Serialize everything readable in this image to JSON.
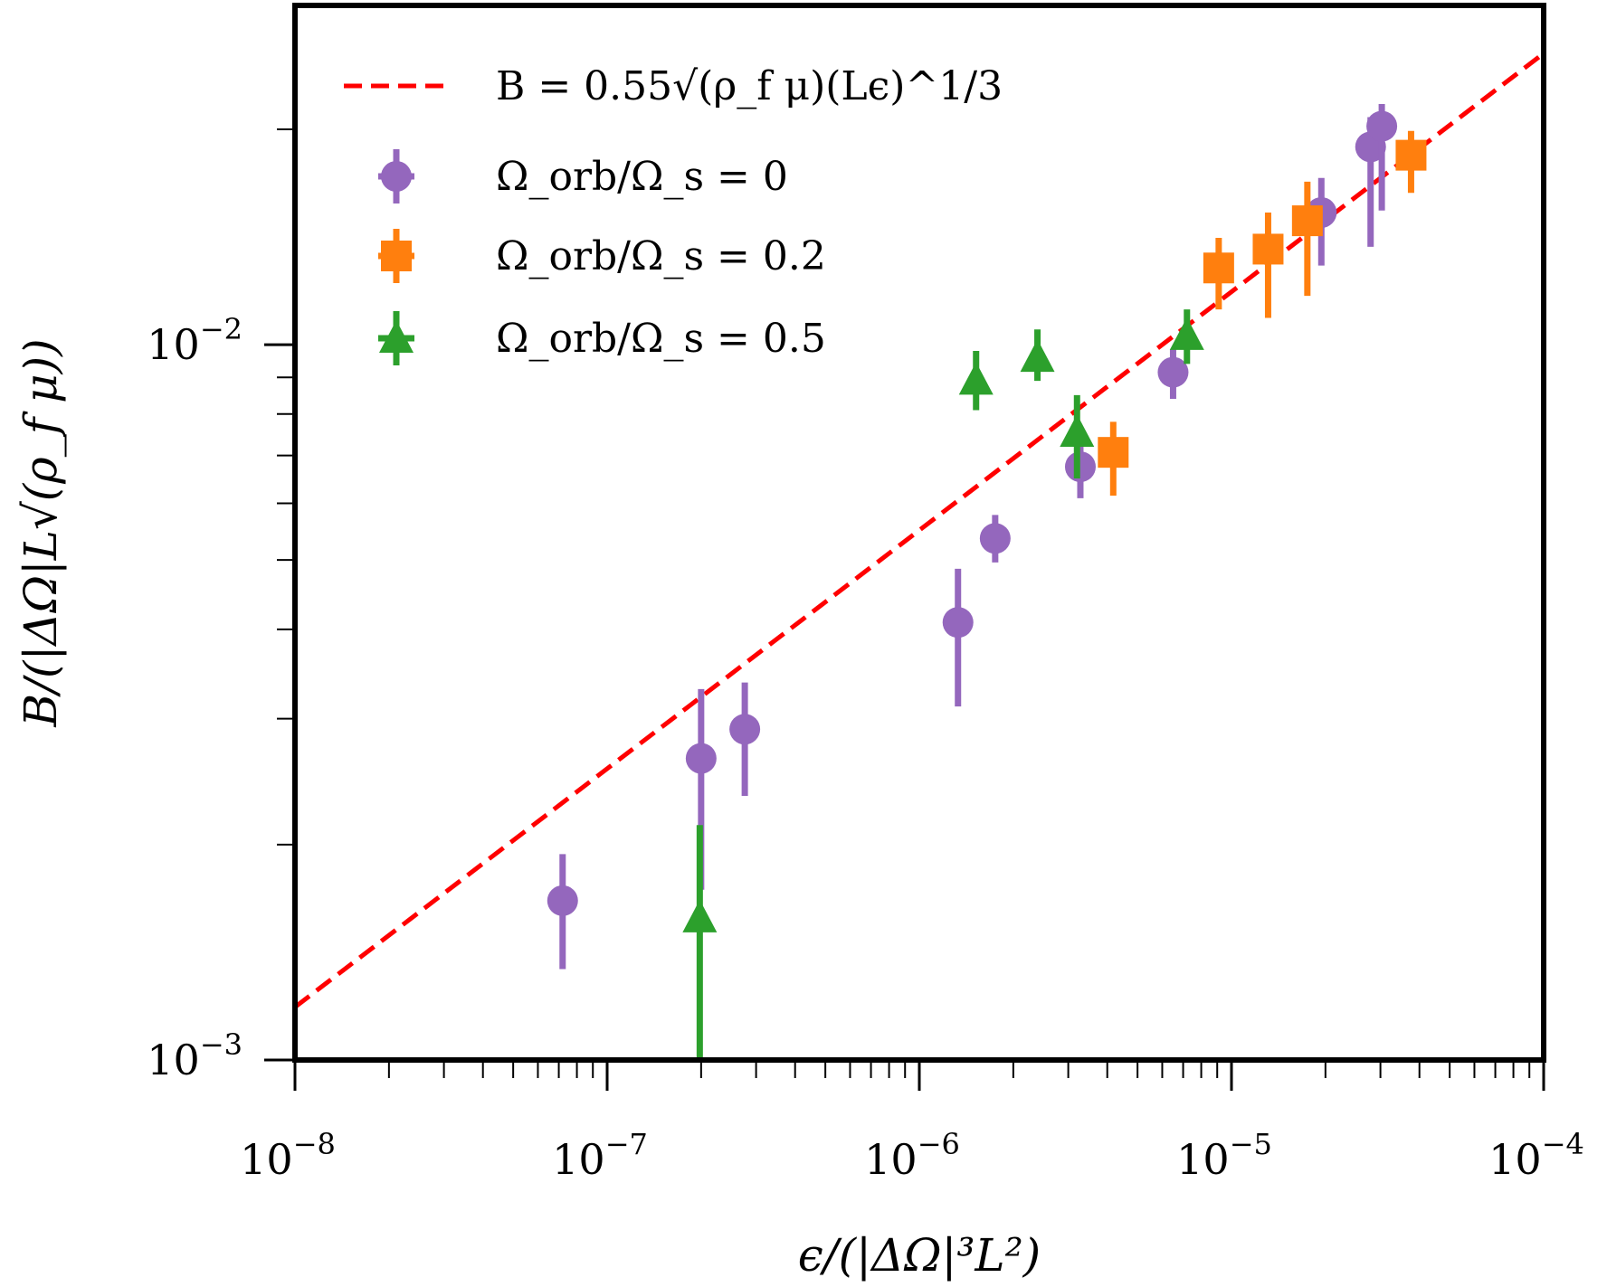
{
  "chart_data": {
    "type": "scatter",
    "title": "",
    "xlabel": "ϵ/(|ΔΩ|³L²)",
    "ylabel": "B/(|ΔΩ|L√(ρ_f μ))",
    "xscale": "log",
    "yscale": "log",
    "xlim": [
      1e-08,
      0.0001
    ],
    "ylim": [
      0.001,
      0.0298
    ],
    "grid": false,
    "legend_position": "top-left",
    "x_ticks": [
      {
        "value": 1e-08,
        "base": "10",
        "exp": "−8"
      },
      {
        "value": 1e-07,
        "base": "10",
        "exp": "−7"
      },
      {
        "value": 1e-06,
        "base": "10",
        "exp": "−6"
      },
      {
        "value": 1e-05,
        "base": "10",
        "exp": "−5"
      },
      {
        "value": 0.0001,
        "base": "10",
        "exp": "−4"
      }
    ],
    "y_ticks": [
      {
        "value": 0.001,
        "base": "10",
        "exp": "−3"
      },
      {
        "value": 0.01,
        "base": "10",
        "exp": "−2"
      }
    ],
    "fit_line": {
      "name": "B = 0.55√(ρ_f μ)(Lϵ)^(1/3)",
      "coefficient": 0.55,
      "exponent": 0.3333,
      "color": "#ff0000",
      "style": "dashed"
    },
    "series": [
      {
        "name": "Ω_orb/Ω_s = 0",
        "marker": "circle",
        "color": "#9467bd",
        "points": [
          {
            "x": 7.2e-08,
            "y": 0.00167,
            "ylo": 0.00134,
            "yhi": 0.00194
          },
          {
            "x": 2e-07,
            "y": 0.00264,
            "ylo": 0.00173,
            "yhi": 0.0033
          },
          {
            "x": 2.76e-07,
            "y": 0.0029,
            "ylo": 0.00234,
            "yhi": 0.00337
          },
          {
            "x": 1.33e-06,
            "y": 0.00409,
            "ylo": 0.00312,
            "yhi": 0.00486
          },
          {
            "x": 1.75e-06,
            "y": 0.00536,
            "ylo": 0.00496,
            "yhi": 0.00578
          },
          {
            "x": 3.28e-06,
            "y": 0.00675,
            "ylo": 0.0061,
            "yhi": 0.00753
          },
          {
            "x": 6.5e-06,
            "y": 0.00915,
            "ylo": 0.0084,
            "yhi": 0.00985
          },
          {
            "x": 1.94e-05,
            "y": 0.0153,
            "ylo": 0.0129,
            "yhi": 0.0171
          },
          {
            "x": 2.79e-05,
            "y": 0.0189,
            "ylo": 0.0137,
            "yhi": 0.0208
          },
          {
            "x": 3.03e-05,
            "y": 0.0202,
            "ylo": 0.0154,
            "yhi": 0.0217
          }
        ]
      },
      {
        "name": "Ω_orb/Ω_s = 0.2",
        "marker": "square",
        "color": "#ff7f0e",
        "points": [
          {
            "x": 4.18e-06,
            "y": 0.00707,
            "ylo": 0.00615,
            "yhi": 0.0078
          },
          {
            "x": 9.1e-06,
            "y": 0.0128,
            "ylo": 0.0112,
            "yhi": 0.0141
          },
          {
            "x": 1.31e-05,
            "y": 0.0136,
            "ylo": 0.0109,
            "yhi": 0.0153
          },
          {
            "x": 1.75e-05,
            "y": 0.0149,
            "ylo": 0.0117,
            "yhi": 0.0169
          },
          {
            "x": 3.76e-05,
            "y": 0.0184,
            "ylo": 0.0163,
            "yhi": 0.0199
          }
        ]
      },
      {
        "name": "Ω_orb/Ω_s = 0.5",
        "marker": "triangle",
        "color": "#2ca02c",
        "points": [
          {
            "x": 1.98e-07,
            "y": 0.00158,
            "ylo": 0.001,
            "yhi": 0.00213
          },
          {
            "x": 1.52e-06,
            "y": 0.00892,
            "ylo": 0.0081,
            "yhi": 0.0098
          },
          {
            "x": 2.39e-06,
            "y": 0.0096,
            "ylo": 0.0089,
            "yhi": 0.0105
          },
          {
            "x": 3.2e-06,
            "y": 0.00754,
            "ylo": 0.0065,
            "yhi": 0.0085
          },
          {
            "x": 7.2e-06,
            "y": 0.0103,
            "ylo": 0.0094,
            "yhi": 0.0112
          }
        ]
      }
    ]
  },
  "legend": {
    "items": [
      {
        "label": "B = 0.55√(ρ_f μ)(Lϵ)^1/3",
        "kind": "line",
        "color": "#ff0000"
      },
      {
        "label": "Ω_orb/Ω_s = 0",
        "kind": "circle",
        "color": "#9467bd"
      },
      {
        "label": "Ω_orb/Ω_s = 0.2",
        "kind": "square",
        "color": "#ff7f0e"
      },
      {
        "label": "Ω_orb/Ω_s = 0.5",
        "kind": "triangle",
        "color": "#2ca02c"
      }
    ]
  }
}
